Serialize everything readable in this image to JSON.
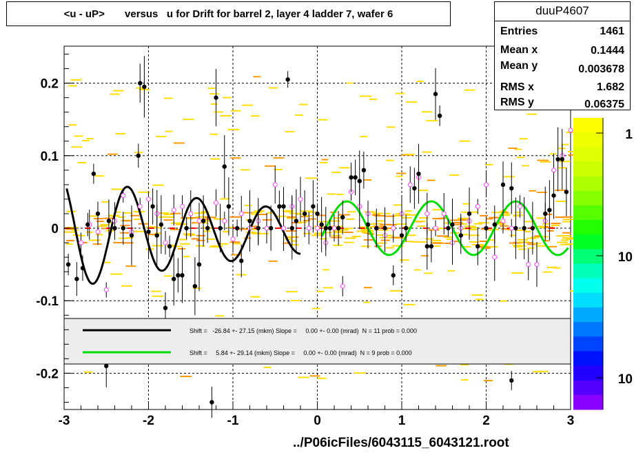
{
  "title": "<u - uP>       versus   u for Drift for barrel 2, layer 4 ladder 7, wafer 6",
  "stats": {
    "name": "duuP4607",
    "rows": [
      {
        "label": "Entries",
        "value": "1461"
      },
      {
        "label": "Mean x",
        "value": "0.1444"
      },
      {
        "label": "Mean y",
        "value": "0.003678"
      },
      {
        "label": "RMS x",
        "value": "1.682"
      },
      {
        "label": "RMS y",
        "value": "0.06375"
      }
    ]
  },
  "footer": "../P06icFiles/6043115_6043121.root",
  "legend": {
    "entries": [
      {
        "text": "Shift =   -26.84 +- 27.15 (mkm) Slope =     0.00 +- 0.00 (mrad)  N = 11 prob = 0.000",
        "color": "#000000"
      },
      {
        "text": "Shift =     5.84 +- 29.14 (mkm) Slope =     0.00 +- 0.00 (mrad)  N = 9 prob = 0.000",
        "color": "#00dd00"
      }
    ]
  },
  "palette": {
    "labels": [
      "1",
      "10",
      "10"
    ],
    "colors": [
      "#ffff00",
      "#f0ff00",
      "#e0ff00",
      "#ccff00",
      "#aaff00",
      "#88ff00",
      "#55ff00",
      "#22ff00",
      "#00ff22",
      "#00ff77",
      "#00ffbb",
      "#00ffee",
      "#00ddff",
      "#00aaff",
      "#0077ff",
      "#0044ff",
      "#0011ff",
      "#2200ff",
      "#5500ff",
      "#8800ff"
    ]
  },
  "chart_data": {
    "type": "scatter",
    "xlim": [
      -3,
      3
    ],
    "ylim": [
      -0.25,
      0.25
    ],
    "xticks": [
      "-3",
      "-2",
      "-1",
      "0",
      "1",
      "2",
      "3"
    ],
    "yticks": [
      "-0.2",
      "-0.1",
      "0",
      "0.1",
      "0.2"
    ],
    "grid": true,
    "series": [
      {
        "points": [
          [
            -2.95,
            -0.05
          ],
          [
            -2.85,
            -0.07
          ],
          [
            -2.78,
            -0.055
          ],
          [
            -2.72,
            0.005
          ],
          [
            -2.65,
            0.075
          ],
          [
            -2.6,
            0.02
          ],
          [
            -2.5,
            -0.19
          ],
          [
            -2.47,
            0.01
          ],
          [
            -2.4,
            0.0
          ],
          [
            -2.3,
            0.0
          ],
          [
            -2.2,
            -0.01
          ],
          [
            -2.12,
            0.1
          ],
          [
            -2.1,
            0.2
          ],
          [
            -2.05,
            0.195
          ],
          [
            -2.0,
            -0.005
          ],
          [
            -1.95,
            0.03
          ],
          [
            -1.9,
            -0.01
          ],
          [
            -1.85,
            0.005
          ],
          [
            -1.8,
            -0.11
          ],
          [
            -1.75,
            -0.025
          ],
          [
            -1.7,
            -0.07
          ],
          [
            -1.65,
            -0.065
          ],
          [
            -1.6,
            -0.065
          ],
          [
            -1.55,
            0.0
          ],
          [
            -1.45,
            -0.08
          ],
          [
            -1.4,
            -0.05
          ],
          [
            -1.35,
            0.01
          ],
          [
            -1.3,
            0.0
          ],
          [
            -1.25,
            -0.24
          ],
          [
            -1.2,
            0.18
          ],
          [
            -1.15,
            0.0
          ],
          [
            -1.1,
            0.085
          ],
          [
            -1.05,
            0.03
          ],
          [
            -0.95,
            0.0
          ],
          [
            -0.9,
            -0.045
          ],
          [
            -0.8,
            0.01
          ],
          [
            -0.7,
            0.0
          ],
          [
            -0.55,
            0.0
          ],
          [
            -0.45,
            0.03
          ],
          [
            -0.4,
            0.03
          ],
          [
            -0.35,
            0.205
          ],
          [
            -0.3,
            0.0
          ],
          [
            -0.25,
            0.01
          ],
          [
            -0.15,
            0.02
          ],
          [
            -0.05,
            0.03
          ],
          [
            0.0,
            0.02
          ],
          [
            0.05,
            0.005
          ],
          [
            0.1,
            0.0
          ],
          [
            0.15,
            0.0
          ],
          [
            0.25,
            0.0
          ],
          [
            0.3,
            0.015
          ],
          [
            0.4,
            0.07
          ],
          [
            0.45,
            0.07
          ],
          [
            0.5,
            0.065
          ],
          [
            0.55,
            0.08
          ],
          [
            0.6,
            0.005
          ],
          [
            0.7,
            0.0
          ],
          [
            0.8,
            0.0
          ],
          [
            0.9,
            -0.065
          ],
          [
            1.0,
            -0.01
          ],
          [
            1.05,
            0.0
          ],
          [
            1.15,
            0.055
          ],
          [
            1.2,
            0.075
          ],
          [
            1.3,
            -0.025
          ],
          [
            1.35,
            -0.025
          ],
          [
            1.4,
            0.185
          ],
          [
            1.45,
            0.155
          ],
          [
            1.55,
            0.0
          ],
          [
            1.6,
            0.005
          ],
          [
            1.7,
            -0.01
          ],
          [
            1.8,
            0.02
          ],
          [
            1.9,
            -0.025
          ],
          [
            2.0,
            0.0
          ],
          [
            2.1,
            0.005
          ],
          [
            2.2,
            0.06
          ],
          [
            2.3,
            0.055
          ],
          [
            2.35,
            0.0
          ],
          [
            2.45,
            0.0
          ],
          [
            2.55,
            0.0
          ],
          [
            2.7,
            0.02
          ],
          [
            2.75,
            0.025
          ],
          [
            2.8,
            0.045
          ],
          [
            2.85,
            0.095
          ],
          [
            2.9,
            0.095
          ],
          [
            2.95,
            0.05
          ],
          [
            2.3,
            -0.21
          ]
        ]
      },
      {
        "points": [
          [
            -2.8,
            -0.02
          ],
          [
            -2.7,
            0.005
          ],
          [
            -2.6,
            -0.005
          ],
          [
            -2.5,
            -0.085
          ],
          [
            -2.4,
            0.01
          ],
          [
            -2.3,
            0.045
          ],
          [
            -2.2,
            -0.005
          ],
          [
            -2.1,
            0.03
          ],
          [
            -2.0,
            0.04
          ],
          [
            -1.9,
            0.02
          ],
          [
            -1.8,
            -0.02
          ],
          [
            -1.7,
            0.025
          ],
          [
            -1.6,
            0.03
          ],
          [
            -1.5,
            0.02
          ],
          [
            -1.4,
            0.01
          ],
          [
            -1.2,
            0.035
          ],
          [
            -1.1,
            0.01
          ],
          [
            -1.0,
            -0.015
          ],
          [
            -0.9,
            0.02
          ],
          [
            -0.8,
            0.0
          ],
          [
            -0.7,
            0.01
          ],
          [
            -0.6,
            0.0
          ],
          [
            -0.5,
            0.06
          ],
          [
            -0.4,
            0.0
          ],
          [
            -0.3,
            0.03
          ],
          [
            -0.2,
            0.04
          ],
          [
            -0.1,
            0.0
          ],
          [
            0.0,
            0.0
          ],
          [
            0.1,
            -0.02
          ],
          [
            0.2,
            0.0
          ],
          [
            0.3,
            -0.08
          ],
          [
            0.4,
            0.05
          ],
          [
            0.5,
            0.03
          ],
          [
            0.6,
            0.02
          ],
          [
            0.7,
            0.0
          ],
          [
            0.8,
            -0.01
          ],
          [
            0.9,
            0.0
          ],
          [
            1.0,
            0.02
          ],
          [
            1.1,
            0.06
          ],
          [
            1.2,
            0.07
          ],
          [
            1.3,
            0.02
          ],
          [
            1.4,
            0.0
          ],
          [
            1.5,
            0.02
          ],
          [
            1.6,
            -0.02
          ],
          [
            1.7,
            0.0
          ],
          [
            1.8,
            0.01
          ],
          [
            1.9,
            0.03
          ],
          [
            2.0,
            0.06
          ],
          [
            2.1,
            -0.04
          ],
          [
            2.2,
            0.01
          ],
          [
            2.3,
            0.0
          ],
          [
            2.4,
            0.03
          ],
          [
            2.5,
            -0.05
          ],
          [
            2.6,
            -0.05
          ],
          [
            2.7,
            0.01
          ],
          [
            2.8,
            0.08
          ],
          [
            2.9,
            0.1
          ],
          [
            3.0,
            0.135
          ]
        ]
      }
    ],
    "fits": [
      {
        "color": "#000000",
        "xrange": [
          -2.97,
          -0.2
        ]
      },
      {
        "color": "#00dd00",
        "xrange": [
          0.05,
          2.97
        ]
      }
    ]
  }
}
